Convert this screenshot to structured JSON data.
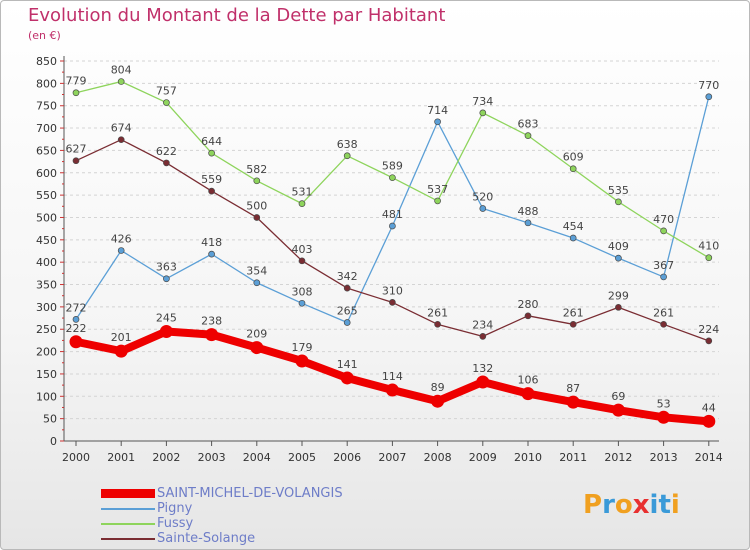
{
  "title": "Evolution du Montant de la Dette par Habitant",
  "unit": "(en €)",
  "colors": {
    "title": "#c0306a",
    "axis": "#555555",
    "grid": "#d4d4d4",
    "legend_text": "#6e7dc8"
  },
  "logo": {
    "text": "Proxiti",
    "letter_colors": [
      "#f0a020",
      "#3a9ad8",
      "#f0a020",
      "#e83030",
      "#3a9ad8",
      "#3a9ad8",
      "#f0a020"
    ]
  },
  "chart_data": {
    "type": "line",
    "title": "Evolution du Montant de la Dette par Habitant",
    "ylabel": "(en €)",
    "xlabel": "",
    "ylim": [
      0,
      850
    ],
    "y_ticks": [
      0,
      50,
      100,
      150,
      200,
      250,
      300,
      350,
      400,
      450,
      500,
      550,
      600,
      650,
      700,
      750,
      800,
      850
    ],
    "grid": "horizontal-dashed",
    "legend_position": "bottom-left",
    "x": [
      "2000",
      "2001",
      "2002",
      "2003",
      "2004",
      "2005",
      "2006",
      "2007",
      "2008",
      "2009",
      "2010",
      "2011",
      "2012",
      "2013",
      "2014"
    ],
    "series": [
      {
        "name": "SAINT-MICHEL-DE-VOLANGIS",
        "color": "#ee0000",
        "emphasis": true,
        "values": [
          222,
          201,
          245,
          238,
          209,
          179,
          141,
          114,
          89,
          132,
          106,
          87,
          69,
          53,
          44
        ]
      },
      {
        "name": "Pigny",
        "color": "#5b9fd6",
        "emphasis": false,
        "values": [
          272,
          426,
          363,
          418,
          354,
          308,
          265,
          481,
          714,
          520,
          488,
          454,
          409,
          367,
          770
        ]
      },
      {
        "name": "Fussy",
        "color": "#8ed45c",
        "emphasis": false,
        "values": [
          779,
          804,
          757,
          644,
          582,
          531,
          638,
          589,
          537,
          734,
          683,
          609,
          535,
          470,
          410
        ]
      },
      {
        "name": "Sainte-Solange",
        "color": "#7a2d33",
        "emphasis": false,
        "values": [
          627,
          674,
          622,
          559,
          500,
          403,
          342,
          310,
          261,
          234,
          280,
          261,
          299,
          261,
          224
        ]
      }
    ]
  }
}
